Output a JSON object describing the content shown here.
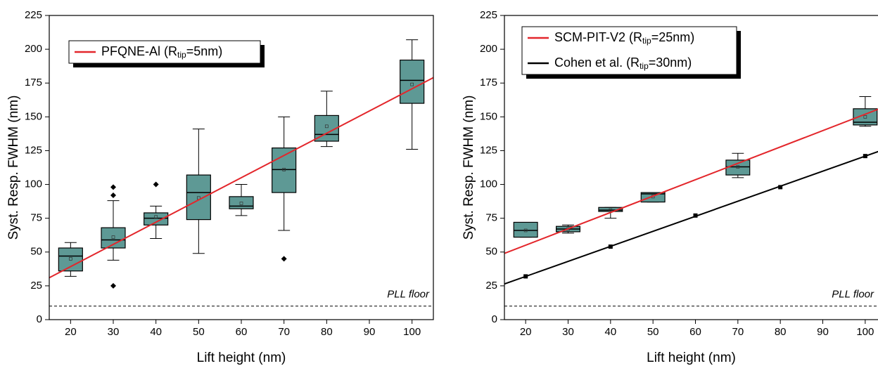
{
  "chart_data": [
    {
      "type": "box",
      "xlabel": "Lift height (nm)",
      "ylabel": "Syst. Resp. FWHM (nm)",
      "xlim": [
        15,
        105
      ],
      "xticks": [
        20,
        30,
        40,
        50,
        60,
        70,
        80,
        90,
        100
      ],
      "ylim": [
        0,
        225
      ],
      "yticks": [
        0,
        25,
        50,
        75,
        100,
        125,
        150,
        175,
        200,
        225
      ],
      "box_color": "#5e9995",
      "legend": "upper left",
      "boxes": [
        {
          "x": 20,
          "min": 32,
          "q1": 36,
          "median": 47,
          "q3": 53,
          "max": 57,
          "mean": 45,
          "outliers": []
        },
        {
          "x": 30,
          "min": 44,
          "q1": 53,
          "median": 59,
          "q3": 68,
          "max": 88,
          "mean": 61,
          "outliers": [
            25,
            92,
            98
          ]
        },
        {
          "x": 40,
          "min": 60,
          "q1": 70,
          "median": 75,
          "q3": 79,
          "max": 84,
          "mean": 76,
          "outliers": [
            100
          ]
        },
        {
          "x": 50,
          "min": 49,
          "q1": 74,
          "median": 94,
          "q3": 107,
          "max": 141,
          "mean": 90,
          "outliers": []
        },
        {
          "x": 60,
          "min": 77,
          "q1": 82,
          "median": 84,
          "q3": 91,
          "max": 100,
          "mean": 86,
          "outliers": []
        },
        {
          "x": 70,
          "min": 66,
          "q1": 94,
          "median": 111,
          "q3": 127,
          "max": 150,
          "mean": 111,
          "outliers": [
            45
          ]
        },
        {
          "x": 80,
          "min": 128,
          "q1": 132,
          "median": 137,
          "q3": 151,
          "max": 169,
          "mean": 143,
          "outliers": []
        },
        {
          "x": 100,
          "min": 126,
          "q1": 160,
          "median": 177,
          "q3": 192,
          "max": 207,
          "mean": 174,
          "outliers": []
        }
      ],
      "lines": [
        {
          "name": "PFQNE-Al (Rtip=5nm)",
          "color": "#e3262b",
          "x": [
            15,
            105
          ],
          "values": [
            31,
            179
          ]
        }
      ],
      "floor": {
        "value": 10,
        "label": "PLL floor"
      }
    },
    {
      "type": "box",
      "xlabel": "Lift height (nm)",
      "ylabel": "Syst. Resp. FWHM (nm)",
      "xlim": [
        15,
        105
      ],
      "xticks": [
        20,
        30,
        40,
        50,
        60,
        70,
        80,
        90,
        100
      ],
      "ylim": [
        0,
        225
      ],
      "yticks": [
        0,
        25,
        50,
        75,
        100,
        125,
        150,
        175,
        200,
        225
      ],
      "box_color": "#5e9995",
      "legend": "upper left",
      "boxes": [
        {
          "x": 20,
          "min": 61,
          "q1": 61,
          "median": 66,
          "q3": 72,
          "max": 72,
          "mean": 66,
          "outliers": []
        },
        {
          "x": 30,
          "min": 64,
          "q1": 65,
          "median": 67,
          "q3": 69,
          "max": 70,
          "mean": 67,
          "outliers": []
        },
        {
          "x": 40,
          "min": 75,
          "q1": 80,
          "median": 81,
          "q3": 83,
          "max": 83,
          "mean": 81,
          "outliers": []
        },
        {
          "x": 50,
          "min": 87,
          "q1": 87,
          "median": 93,
          "q3": 94,
          "max": 94,
          "mean": 91,
          "outliers": []
        },
        {
          "x": 70,
          "min": 105,
          "q1": 107,
          "median": 113,
          "q3": 118,
          "max": 123,
          "mean": 113,
          "outliers": []
        },
        {
          "x": 100,
          "min": 143,
          "q1": 144,
          "median": 146,
          "q3": 156,
          "max": 165,
          "mean": 150,
          "outliers": []
        }
      ],
      "lines": [
        {
          "name": "SCM-PIT-V2 (Rtip=25nm)",
          "color": "#e3262b",
          "x": [
            15,
            105
          ],
          "values": [
            49,
            158
          ]
        },
        {
          "name": "Cohen et al. (Rtip=30nm)",
          "color": "#000000",
          "x": [
            15,
            105
          ],
          "values": [
            26.4,
            126.5
          ],
          "points": {
            "x": [
              20,
              40,
              60,
              80,
              100
            ],
            "values": [
              32,
              54,
              77,
              98,
              121
            ]
          }
        }
      ],
      "floor": {
        "value": 10,
        "label": "PLL floor"
      }
    }
  ]
}
